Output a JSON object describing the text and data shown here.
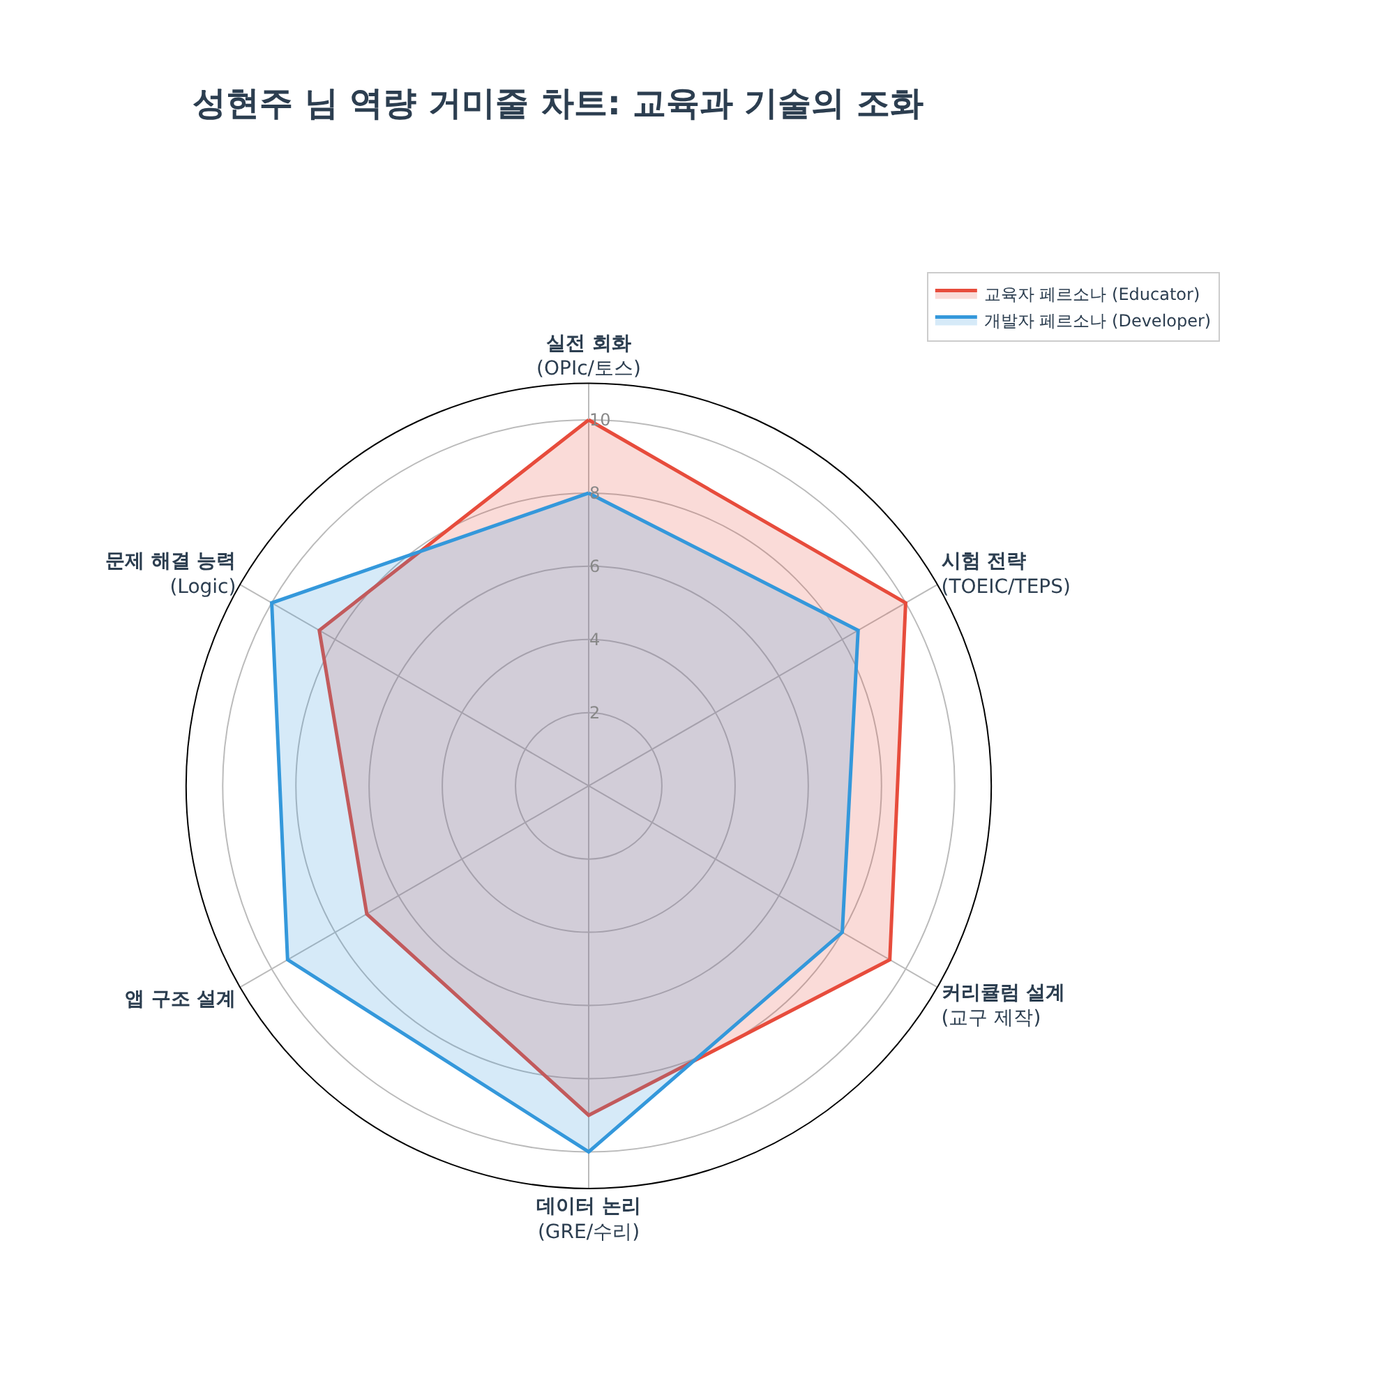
{
  "chart_data": {
    "type": "radar",
    "title": "성현주 님 역량 거미줄 차트: 교육과 기술의 조화",
    "categories": [
      "실전 회화\n(OPIc/토스)",
      "시험 전략\n(TOEIC/TEPS)",
      "커리큘럼 설계\n(교구 제작)",
      "데이터 논리\n(GRE/수리)",
      "앱 구조 설계",
      "문제 해결 능력\n(Logic)"
    ],
    "series": [
      {
        "name": "교육자 페르소나 (Educator)",
        "color": "#e74c3c",
        "values": [
          10,
          10,
          9.5,
          9,
          7,
          8.5
        ]
      },
      {
        "name": "개발자 페르소나 (Developer)",
        "color": "#3498db",
        "values": [
          8,
          8.5,
          8,
          10,
          9.5,
          10
        ]
      }
    ],
    "ylim": [
      0,
      11
    ],
    "yticks": [
      2,
      4,
      6,
      8,
      10
    ],
    "grid": true,
    "legend": "top right"
  }
}
